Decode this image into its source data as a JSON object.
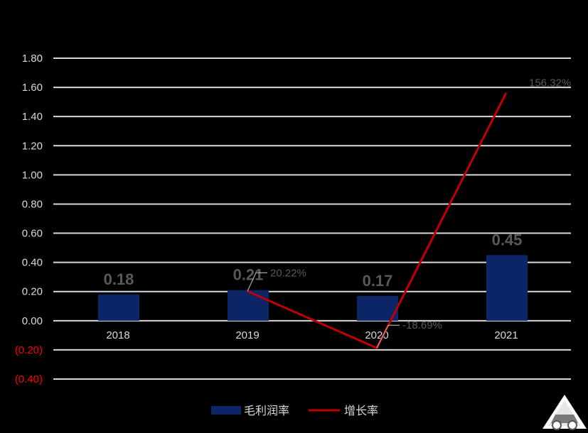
{
  "chart_data": {
    "type": "bar",
    "categories": [
      "2018",
      "2019",
      "2020",
      "2021"
    ],
    "series": [
      {
        "name": "毛利润率",
        "kind": "bar",
        "color": "#0b2566",
        "values": [
          0.18,
          0.21,
          0.17,
          0.45
        ],
        "labels": [
          "0.18",
          "0.21",
          "0.17",
          "0.45"
        ]
      },
      {
        "name": "增长率",
        "kind": "line",
        "color": "#c00000",
        "values": [
          null,
          0.2022,
          -0.1869,
          1.5632
        ],
        "labels": [
          null,
          "20.22%",
          "-18.69%",
          "156.32%"
        ]
      }
    ],
    "yticks": [
      "1.80",
      "1.60",
      "1.40",
      "1.20",
      "1.00",
      "0.80",
      "0.60",
      "0.40",
      "0.20",
      "0.00",
      "(0.20)",
      "(0.40)"
    ],
    "ylim": [
      -0.4,
      1.8
    ],
    "grid": true,
    "legend_position": "bottom"
  }
}
